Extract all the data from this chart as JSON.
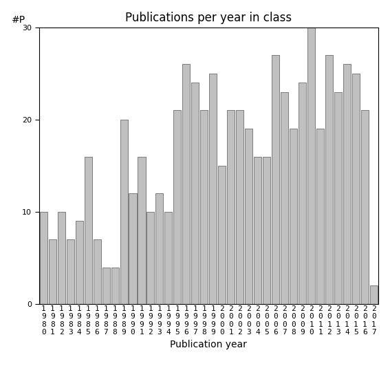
{
  "title": "Publications per year in class",
  "xlabel": "Publication year",
  "ylabel": "#P",
  "years": [
    1980,
    1981,
    1982,
    1983,
    1984,
    1985,
    1986,
    1987,
    1988,
    1989,
    1990,
    1991,
    1992,
    1993,
    1994,
    1995,
    1996,
    1997,
    1998,
    1999,
    2000,
    2001,
    2002,
    2003,
    2004,
    2005,
    2006,
    2007,
    2008,
    2009,
    2010,
    2011,
    2012,
    2013,
    2014,
    2015,
    2016,
    2017
  ],
  "values": [
    10,
    7,
    10,
    7,
    9,
    16,
    7,
    4,
    4,
    20,
    12,
    16,
    10,
    12,
    10,
    21,
    26,
    24,
    21,
    25,
    15,
    21,
    21,
    19,
    16,
    16,
    27,
    23,
    19,
    24,
    30,
    19,
    27,
    23,
    26,
    25,
    21,
    2
  ],
  "bar_color": "#c0c0c0",
  "bar_edgecolor": "#555555",
  "bar_linewidth": 0.5,
  "bar_width": 0.85,
  "ylim": [
    0,
    30
  ],
  "yticks": [
    0,
    10,
    20,
    30
  ],
  "background_color": "#ffffff",
  "title_fontsize": 12,
  "label_fontsize": 10,
  "tick_fontsize": 8,
  "spine_color": "#000000"
}
